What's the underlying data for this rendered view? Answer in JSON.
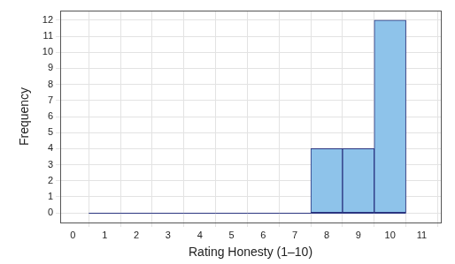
{
  "chart_data": {
    "type": "histogram",
    "x_label": "Rating Honesty (1–10)",
    "y_label": "Frequency",
    "bins": [
      0.5,
      1.5,
      2.5,
      3.5,
      4.5,
      5.5,
      6.5,
      7.5,
      8.5,
      9.5,
      10.5
    ],
    "values": [
      0,
      0,
      0,
      0,
      0,
      0,
      0,
      4,
      4,
      12
    ],
    "color": "#8ec3ea",
    "xlim": [
      -0.4,
      11.6
    ],
    "xticks": [
      0,
      1,
      2,
      3,
      4,
      5,
      6,
      7,
      8,
      9,
      10,
      11
    ],
    "ylim": [
      -0.6,
      12.6
    ],
    "yticks": [
      0,
      1,
      2,
      3,
      4,
      5,
      6,
      7,
      8,
      9,
      10,
      11,
      12
    ],
    "grid": true
  }
}
